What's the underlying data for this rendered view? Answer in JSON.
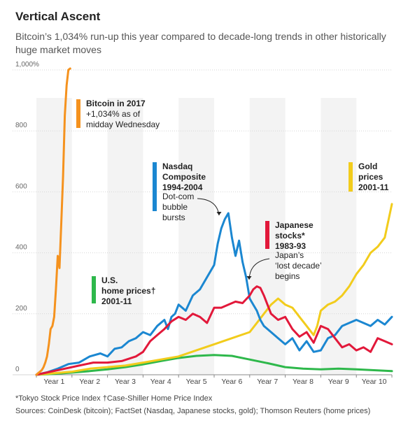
{
  "title": "Vertical Ascent",
  "subtitle": "Bitcoin’s 1,034% run-up this year compared to decade-long trends in other historically huge market moves",
  "footnote": "*Tokyo Stock Price Index   †Case-Shiller Home Price Index",
  "sources": "Sources: CoinDesk (bitcoin); FactSet (Nasdaq, Japanese stocks, gold); Thomson Reuters (home prices)",
  "chart_data": {
    "type": "line",
    "xlabel": "",
    "ylabel": "",
    "xlim": [
      0,
      10
    ],
    "ylim": [
      0,
      1000
    ],
    "y_ticks": [
      0,
      200,
      400,
      600,
      800,
      1000
    ],
    "y_tick_labels": [
      "0",
      "200",
      "400",
      "600",
      "800",
      "1,000%"
    ],
    "x_tick_labels": [
      "Year 1",
      "Year 2",
      "Year 3",
      "Year 4",
      "Year 5",
      "Year 6",
      "Year 7",
      "Year 8",
      "Year 9",
      "Year 10"
    ],
    "grid": true,
    "series": [
      {
        "name": "Bitcoin in 2017",
        "color": "#f5921e",
        "labels": [
          "Bitcoin in 2017",
          "+1,034% as of",
          "midday Wednesday"
        ],
        "x": [
          0,
          0.05,
          0.1,
          0.15,
          0.2,
          0.25,
          0.3,
          0.35,
          0.4,
          0.45,
          0.5,
          0.55,
          0.6,
          0.62,
          0.65,
          0.7,
          0.75,
          0.8,
          0.85,
          0.9,
          0.95
        ],
        "y": [
          0,
          5,
          10,
          15,
          25,
          40,
          60,
          100,
          150,
          160,
          190,
          280,
          390,
          380,
          350,
          500,
          650,
          850,
          950,
          1000,
          1034
        ]
      },
      {
        "name": "Nasdaq Composite 1994-2004",
        "color": "#1b87d1",
        "labels": [
          "Nasdaq",
          "Composite",
          "1994-2004"
        ],
        "annotation": [
          "Dot-com",
          "bubble",
          "bursts"
        ],
        "x": [
          0,
          0.3,
          0.6,
          0.9,
          1.2,
          1.5,
          1.8,
          2.0,
          2.2,
          2.4,
          2.6,
          2.8,
          3.0,
          3.2,
          3.4,
          3.6,
          3.7,
          3.8,
          3.9,
          4.0,
          4.2,
          4.4,
          4.6,
          4.8,
          5.0,
          5.1,
          5.2,
          5.3,
          5.4,
          5.5,
          5.6,
          5.7,
          5.8,
          5.9,
          6.0,
          6.1,
          6.2,
          6.3,
          6.4,
          6.5,
          6.6,
          6.8,
          7.0,
          7.2,
          7.4,
          7.6,
          7.8,
          8.0,
          8.2,
          8.4,
          8.6,
          8.8,
          9.0,
          9.2,
          9.4,
          9.6,
          9.8,
          10.0
        ],
        "y": [
          0,
          8,
          20,
          35,
          40,
          60,
          70,
          60,
          85,
          90,
          110,
          120,
          140,
          130,
          160,
          180,
          150,
          190,
          200,
          230,
          210,
          260,
          280,
          320,
          360,
          430,
          480,
          510,
          530,
          450,
          390,
          440,
          370,
          320,
          250,
          230,
          210,
          180,
          160,
          150,
          140,
          120,
          100,
          120,
          80,
          110,
          75,
          80,
          120,
          130,
          160,
          170,
          180,
          170,
          160,
          180,
          165,
          190
        ]
      },
      {
        "name": "Japanese stocks* 1983-93",
        "color": "#e2183a",
        "labels": [
          "Japanese",
          "stocks*",
          "1983-93"
        ],
        "annotation": [
          "Japan’s",
          "‘lost decade’",
          "begins"
        ],
        "x": [
          0,
          0.4,
          0.8,
          1.2,
          1.6,
          2.0,
          2.4,
          2.8,
          3.0,
          3.2,
          3.4,
          3.6,
          3.8,
          4.0,
          4.2,
          4.4,
          4.6,
          4.8,
          5.0,
          5.2,
          5.4,
          5.6,
          5.8,
          6.0,
          6.1,
          6.2,
          6.3,
          6.4,
          6.6,
          6.8,
          7.0,
          7.2,
          7.4,
          7.6,
          7.8,
          8.0,
          8.2,
          8.4,
          8.6,
          8.8,
          9.0,
          9.2,
          9.4,
          9.6,
          9.8,
          10.0
        ],
        "y": [
          0,
          10,
          20,
          30,
          40,
          40,
          45,
          60,
          75,
          110,
          130,
          150,
          175,
          190,
          180,
          200,
          190,
          170,
          220,
          220,
          230,
          240,
          235,
          260,
          280,
          290,
          285,
          260,
          200,
          180,
          190,
          150,
          125,
          140,
          105,
          160,
          150,
          120,
          90,
          100,
          80,
          90,
          75,
          120,
          110,
          100
        ]
      },
      {
        "name": "Gold prices 2001-11",
        "color": "#f2cc1c",
        "labels": [
          "Gold",
          "prices",
          "2001-11"
        ],
        "x": [
          0,
          0.5,
          1.0,
          1.5,
          2.0,
          2.5,
          3.0,
          3.5,
          4.0,
          4.5,
          5.0,
          5.5,
          6.0,
          6.2,
          6.4,
          6.6,
          6.8,
          7.0,
          7.2,
          7.4,
          7.6,
          7.8,
          7.9,
          8.0,
          8.2,
          8.4,
          8.6,
          8.8,
          9.0,
          9.2,
          9.4,
          9.6,
          9.8,
          10.0
        ],
        "y": [
          0,
          5,
          10,
          20,
          25,
          30,
          40,
          50,
          60,
          80,
          100,
          120,
          140,
          170,
          200,
          230,
          250,
          230,
          220,
          190,
          160,
          130,
          160,
          210,
          230,
          240,
          260,
          290,
          330,
          360,
          400,
          420,
          450,
          560
        ]
      },
      {
        "name": "U.S. home prices† 2001-11",
        "color": "#2eb84b",
        "labels": [
          "U.S.",
          "home prices†",
          "2001-11"
        ],
        "x": [
          0,
          0.5,
          1.0,
          1.5,
          2.0,
          2.5,
          3.0,
          3.5,
          4.0,
          4.5,
          5.0,
          5.5,
          6.0,
          6.5,
          7.0,
          7.5,
          8.0,
          8.5,
          9.0,
          9.5,
          10.0
        ],
        "y": [
          0,
          3,
          7,
          12,
          18,
          25,
          34,
          45,
          55,
          62,
          65,
          62,
          50,
          38,
          25,
          20,
          18,
          20,
          18,
          15,
          12
        ]
      }
    ]
  }
}
